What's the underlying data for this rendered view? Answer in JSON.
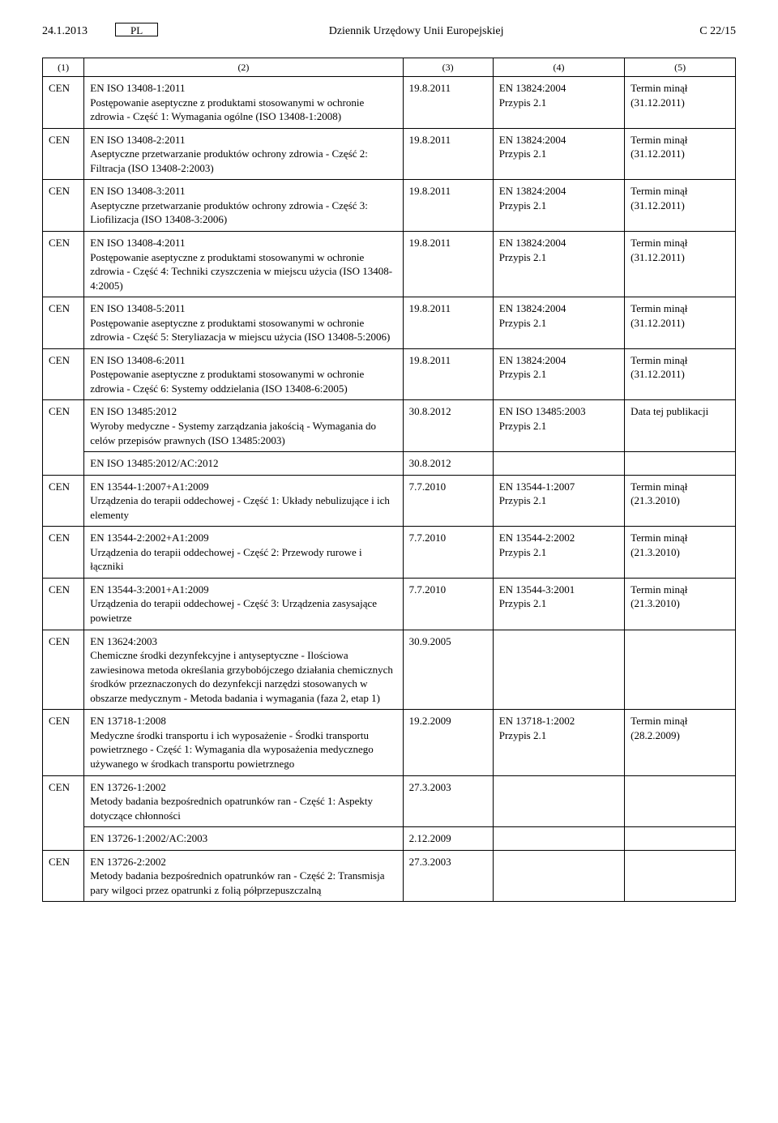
{
  "header": {
    "date": "24.1.2013",
    "lang": "PL",
    "title": "Dziennik Urzędowy Unii Europejskiej",
    "page": "C 22/15"
  },
  "columns": {
    "c1": "(1)",
    "c2": "(2)",
    "c3": "(3)",
    "c4": "(4)",
    "c5": "(5)"
  },
  "rows": [
    {
      "org": "CEN",
      "title": "EN ISO 13408-1:2011",
      "desc": "Postępowanie aseptyczne z produktami stosowanymi w ochronie zdrowia - Część 1: Wymagania ogólne (ISO 13408-1:2008)",
      "c3": "19.8.2011",
      "c4a": "EN 13824:2004",
      "c4b": "Przypis 2.1",
      "c5a": "Termin minął",
      "c5b": "(31.12.2011)"
    },
    {
      "org": "CEN",
      "title": "EN ISO 13408-2:2011",
      "desc": "Aseptyczne przetwarzanie produktów ochrony zdrowia - Część 2: Filtracja (ISO 13408-2:2003)",
      "c3": "19.8.2011",
      "c4a": "EN 13824:2004",
      "c4b": "Przypis 2.1",
      "c5a": "Termin minął",
      "c5b": "(31.12.2011)"
    },
    {
      "org": "CEN",
      "title": "EN ISO 13408-3:2011",
      "desc": "Aseptyczne przetwarzanie produktów ochrony zdrowia - Część 3: Liofilizacja (ISO 13408-3:2006)",
      "c3": "19.8.2011",
      "c4a": "EN 13824:2004",
      "c4b": "Przypis 2.1",
      "c5a": "Termin minął",
      "c5b": "(31.12.2011)"
    },
    {
      "org": "CEN",
      "title": "EN ISO 13408-4:2011",
      "desc": "Postępowanie aseptyczne z produktami stosowanymi w ochronie zdrowia - Część 4: Techniki czyszczenia w miejscu użycia (ISO 13408-4:2005)",
      "c3": "19.8.2011",
      "c4a": "EN 13824:2004",
      "c4b": "Przypis 2.1",
      "c5a": "Termin minął",
      "c5b": "(31.12.2011)"
    },
    {
      "org": "CEN",
      "title": "EN ISO 13408-5:2011",
      "desc": "Postępowanie aseptyczne z produktami stosowanymi w ochronie zdrowia - Część 5: Steryliazacja w miejscu użycia (ISO 13408-5:2006)",
      "c3": "19.8.2011",
      "c4a": "EN 13824:2004",
      "c4b": "Przypis 2.1",
      "c5a": "Termin minął",
      "c5b": "(31.12.2011)"
    },
    {
      "org": "CEN",
      "title": "EN ISO 13408-6:2011",
      "desc": "Postępowanie aseptyczne z produktami stosowanymi w ochronie zdrowia - Część 6: Systemy oddzielania (ISO 13408-6:2005)",
      "c3": "19.8.2011",
      "c4a": "EN 13824:2004",
      "c4b": "Przypis 2.1",
      "c5a": "Termin minął",
      "c5b": "(31.12.2011)"
    },
    {
      "org": "CEN",
      "title": "EN ISO 13485:2012",
      "desc": "Wyroby medyczne - Systemy zarządzania jakością - Wymagania do celów przepisów prawnych (ISO 13485:2003)",
      "c3": "30.8.2012",
      "c4a": "EN ISO 13485:2003",
      "c4b": "Przypis 2.1",
      "c5a": "Data tej publikacji",
      "c5b": "",
      "sub": {
        "title": "EN ISO 13485:2012/AC:2012",
        "c3": "30.8.2012"
      }
    },
    {
      "org": "CEN",
      "title": "EN 13544-1:2007+A1:2009",
      "desc": "Urządzenia do terapii oddechowej - Część 1: Układy nebulizujące i ich elementy",
      "c3": "7.7.2010",
      "c4a": "EN 13544-1:2007",
      "c4b": "Przypis 2.1",
      "c5a": "Termin minął",
      "c5b": "(21.3.2010)"
    },
    {
      "org": "CEN",
      "title": "EN 13544-2:2002+A1:2009",
      "desc": "Urządzenia do terapii oddechowej - Część 2: Przewody rurowe i łączniki",
      "c3": "7.7.2010",
      "c4a": "EN 13544-2:2002",
      "c4b": "Przypis 2.1",
      "c5a": "Termin minął",
      "c5b": "(21.3.2010)"
    },
    {
      "org": "CEN",
      "title": "EN 13544-3:2001+A1:2009",
      "desc": "Urządzenia do terapii oddechowej - Część 3: Urządzenia zasysające powietrze",
      "c3": "7.7.2010",
      "c4a": "EN 13544-3:2001",
      "c4b": "Przypis 2.1",
      "c5a": "Termin minął",
      "c5b": "(21.3.2010)"
    },
    {
      "org": "CEN",
      "title": "EN 13624:2003",
      "desc": "Chemiczne środki dezynfekcyjne i antyseptyczne - Ilościowa zawiesinowa metoda określania grzybobójczego działania chemicznych środków przeznaczonych do dezynfekcji narzędzi stosowanych w obszarze medycznym - Metoda badania i wymagania (faza 2, etap 1)",
      "c3": "30.9.2005",
      "c4a": "",
      "c4b": "",
      "c5a": "",
      "c5b": ""
    },
    {
      "org": "CEN",
      "title": "EN 13718-1:2008",
      "desc": "Medyczne środki transportu i ich wyposażenie - Środki transportu powietrznego - Część 1: Wymagania dla wyposażenia medycznego używanego w środkach transportu powietrznego",
      "c3": "19.2.2009",
      "c4a": "EN 13718-1:2002",
      "c4b": "Przypis 2.1",
      "c5a": "Termin minął",
      "c5b": "(28.2.2009)"
    },
    {
      "org": "CEN",
      "title": "EN 13726-1:2002",
      "desc": "Metody badania bezpośrednich opatrunków ran - Część 1: Aspekty dotyczące chłonności",
      "c3": "27.3.2003",
      "c4a": "",
      "c4b": "",
      "c5a": "",
      "c5b": "",
      "sub": {
        "title": "EN 13726-1:2002/AC:2003",
        "c3": "2.12.2009"
      }
    },
    {
      "org": "CEN",
      "title": "EN 13726-2:2002",
      "desc": "Metody badania bezpośrednich opatrunków ran - Część 2: Transmisja pary wilgoci przez opatrunki z folią półprzepuszczalną",
      "c3": "27.3.2003",
      "c4a": "",
      "c4b": "",
      "c5a": "",
      "c5b": ""
    }
  ]
}
